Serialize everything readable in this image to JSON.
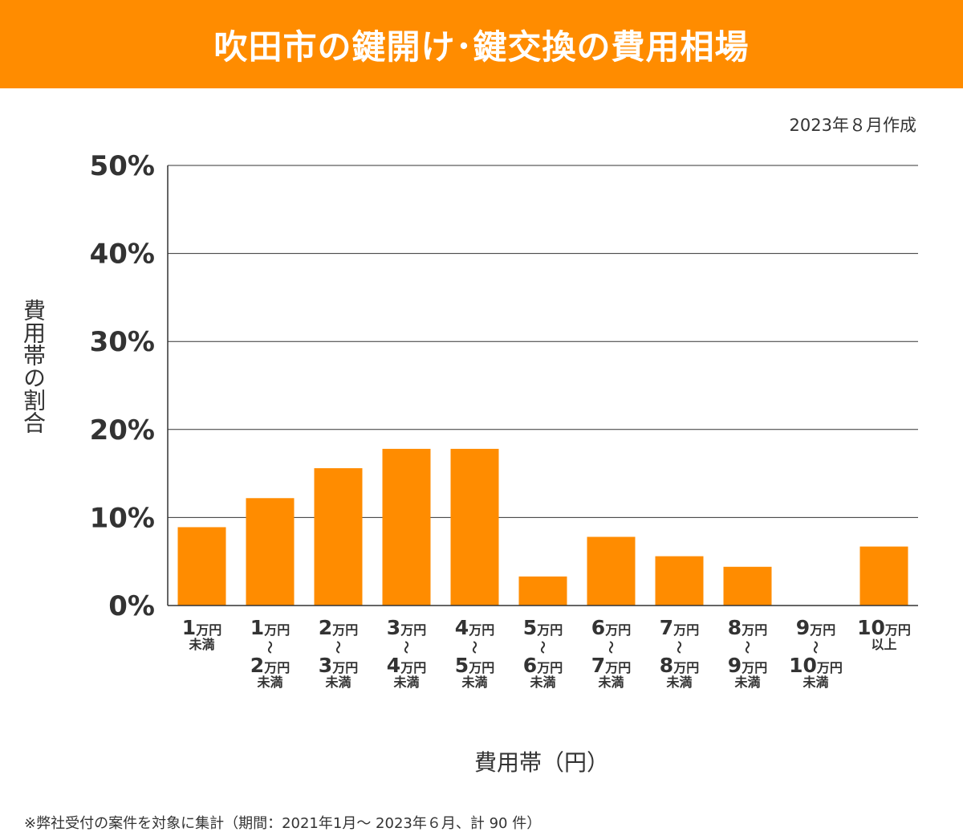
{
  "header": {
    "title": "吹田市の鍵開け･鍵交換の費用相場",
    "date": "2023年８月作成",
    "note": "※弊社受付の案件を対象に集計（期間：2021年1月～ 2023年６月、計 90 件）"
  },
  "chart_data": {
    "type": "bar",
    "title": "吹田市の鍵開け･鍵交換の費用相場",
    "xlabel": "費用帯（円）",
    "ylabel": "費用帯の割合",
    "ylim": [
      0,
      50
    ],
    "yticks": [
      "0%",
      "10%",
      "20%",
      "30%",
      "40%",
      "50%"
    ],
    "grid": true,
    "bar_color": "#ff8c00",
    "categories": [
      [
        "1万円",
        "未満"
      ],
      [
        "1万円",
        "〜",
        "2万円",
        "未満"
      ],
      [
        "2万円",
        "〜",
        "3万円",
        "未満"
      ],
      [
        "3万円",
        "〜",
        "4万円",
        "未満"
      ],
      [
        "4万円",
        "〜",
        "5万円",
        "未満"
      ],
      [
        "5万円",
        "〜",
        "6万円",
        "未満"
      ],
      [
        "6万円",
        "〜",
        "7万円",
        "未満"
      ],
      [
        "7万円",
        "〜",
        "8万円",
        "未満"
      ],
      [
        "8万円",
        "〜",
        "9万円",
        "未満"
      ],
      [
        "9万円",
        "〜",
        "10万円",
        "未満"
      ],
      [
        "10万円",
        "以上"
      ]
    ],
    "values": [
      8.9,
      12.2,
      15.6,
      17.8,
      17.8,
      3.3,
      7.8,
      5.6,
      4.4,
      0,
      6.7
    ]
  }
}
